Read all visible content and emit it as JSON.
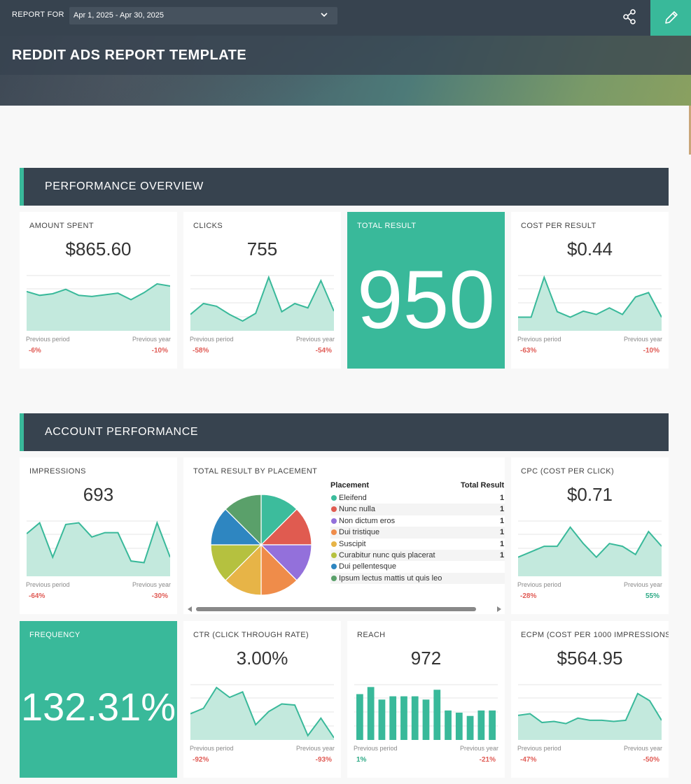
{
  "header": {
    "report_for_label": "REPORT FOR",
    "date_range": "Apr 1, 2025 - Apr 30, 2025",
    "title": "REDDIT ADS REPORT TEMPLATE",
    "share_icon": "share-icon",
    "edit_icon": "pencil-icon"
  },
  "colors": {
    "accent": "#39b99a",
    "dark": "#37434f",
    "negative": "#e05b55",
    "positive": "#2eaa86"
  },
  "sections": {
    "performance": "PERFORMANCE OVERVIEW",
    "account": "ACCOUNT PERFORMANCE"
  },
  "labels": {
    "previous_period": "Previous period",
    "previous_year": "Previous year"
  },
  "cards": {
    "amount_spent": {
      "label": "AMOUNT SPENT",
      "value": "$865.60",
      "prev_period": "-6%",
      "prev_year": "-10%",
      "trend": [
        0.72,
        0.65,
        0.68,
        0.76,
        0.65,
        0.63,
        0.66,
        0.69,
        0.57,
        0.7,
        0.86,
        0.82
      ]
    },
    "clicks": {
      "label": "CLICKS",
      "value": "755",
      "prev_period": "-58%",
      "prev_year": "-54%",
      "trend": [
        0.3,
        0.5,
        0.45,
        0.3,
        0.18,
        0.32,
        0.98,
        0.35,
        0.5,
        0.42,
        0.92,
        0.36
      ]
    },
    "total_result": {
      "label": "TOTAL RESULT",
      "value": "950"
    },
    "cost_per_result": {
      "label": "COST PER RESULT",
      "value": "$0.44",
      "prev_period": "-63%",
      "prev_year": "-10%",
      "trend": [
        0.25,
        0.25,
        0.98,
        0.35,
        0.25,
        0.36,
        0.3,
        0.42,
        0.3,
        0.62,
        0.7,
        0.25
      ]
    },
    "impressions": {
      "label": "IMPRESSIONS",
      "value": "693",
      "prev_period": "-64%",
      "prev_year": "-30%",
      "trend": [
        0.78,
        0.98,
        0.35,
        0.95,
        0.98,
        0.72,
        0.8,
        0.8,
        0.28,
        0.25,
        0.98,
        0.35
      ]
    },
    "cpc": {
      "label": "CPC (COST PER CLICK)",
      "value": "$0.71",
      "prev_period": "-28%",
      "prev_year": "55%",
      "trend": [
        0.35,
        0.45,
        0.55,
        0.55,
        0.9,
        0.6,
        0.35,
        0.6,
        0.55,
        0.4,
        0.82,
        0.55
      ]
    },
    "frequency": {
      "label": "FREQUENCY",
      "value": "132.31%"
    },
    "ctr": {
      "label": "CTR (CLICK THROUGH RATE)",
      "value": "3.00%",
      "prev_period": "-92%",
      "prev_year": "-93%",
      "trend": [
        0.48,
        0.58,
        0.96,
        0.78,
        0.88,
        0.28,
        0.52,
        0.66,
        0.64,
        0.08,
        0.4,
        0.04
      ]
    },
    "reach": {
      "label": "REACH",
      "value": "972",
      "prev_period": "1%",
      "prev_year": "-21%",
      "trend": [
        0.84,
        0.97,
        0.74,
        0.8,
        0.8,
        0.8,
        0.74,
        0.92,
        0.54,
        0.5,
        0.44,
        0.54,
        0.54
      ]
    },
    "ecpm": {
      "label": "ECPM (COST PER 1000 IMPRESSIONS)",
      "value": "$564.95",
      "prev_period": "-47%",
      "prev_year": "-50%",
      "trend": [
        0.45,
        0.48,
        0.32,
        0.34,
        0.3,
        0.4,
        0.36,
        0.36,
        0.34,
        0.36,
        0.85,
        0.72,
        0.36
      ]
    }
  },
  "placement": {
    "label": "TOTAL RESULT BY PLACEMENT",
    "col_placement": "Placement",
    "col_total": "Total Result",
    "rows": [
      {
        "name": "Eleifend",
        "value": "1",
        "color": "#3cbc9c"
      },
      {
        "name": "Nunc nulla",
        "value": "1",
        "color": "#e05b50"
      },
      {
        "name": "Non dictum eros",
        "value": "1",
        "color": "#9370db"
      },
      {
        "name": "Dui tristique",
        "value": "1",
        "color": "#ef8c4a"
      },
      {
        "name": "Suscipit",
        "value": "1",
        "color": "#e7b447"
      },
      {
        "name": "Curabitur nunc quis placerat",
        "value": "1",
        "color": "#b5c13f"
      },
      {
        "name": "Dui pellentesque",
        "value": "",
        "color": "#2e86c1"
      },
      {
        "name": "Ipsum lectus mattis ut quis leo",
        "value": "",
        "color": "#5aa06a"
      }
    ]
  }
}
